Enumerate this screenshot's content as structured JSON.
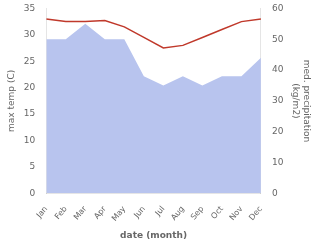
{
  "chart_data": {
    "type": "line",
    "categories": [
      "Jan",
      "Feb",
      "Mar",
      "Apr",
      "May",
      "Jun",
      "Jul",
      "Aug",
      "Sep",
      "Oct",
      "Nov",
      "Dec"
    ],
    "series": [
      {
        "type": "area",
        "color": "#b8c4ee",
        "axis": "y2",
        "values": [
          50,
          50,
          55,
          50,
          50,
          38,
          35,
          38,
          35,
          38,
          38,
          44
        ]
      },
      {
        "type": "line",
        "color": "#c0392b",
        "values": [
          33.0,
          32.5,
          32.5,
          32.7,
          31.5,
          29.5,
          27.5,
          28.0,
          29.5,
          31.0,
          32.5,
          33.0
        ]
      }
    ],
    "xlabel": "date (month)",
    "ylabel": "max temp (C)",
    "y2label": "med. precipitation\n(kg/m2)",
    "ylim": [
      0,
      35
    ],
    "yticks": [
      0,
      5,
      10,
      15,
      20,
      25,
      30,
      35
    ],
    "y2lim": [
      0,
      60
    ],
    "y2ticks": [
      0,
      10,
      20,
      30,
      40,
      50,
      60
    ],
    "grid": false
  }
}
